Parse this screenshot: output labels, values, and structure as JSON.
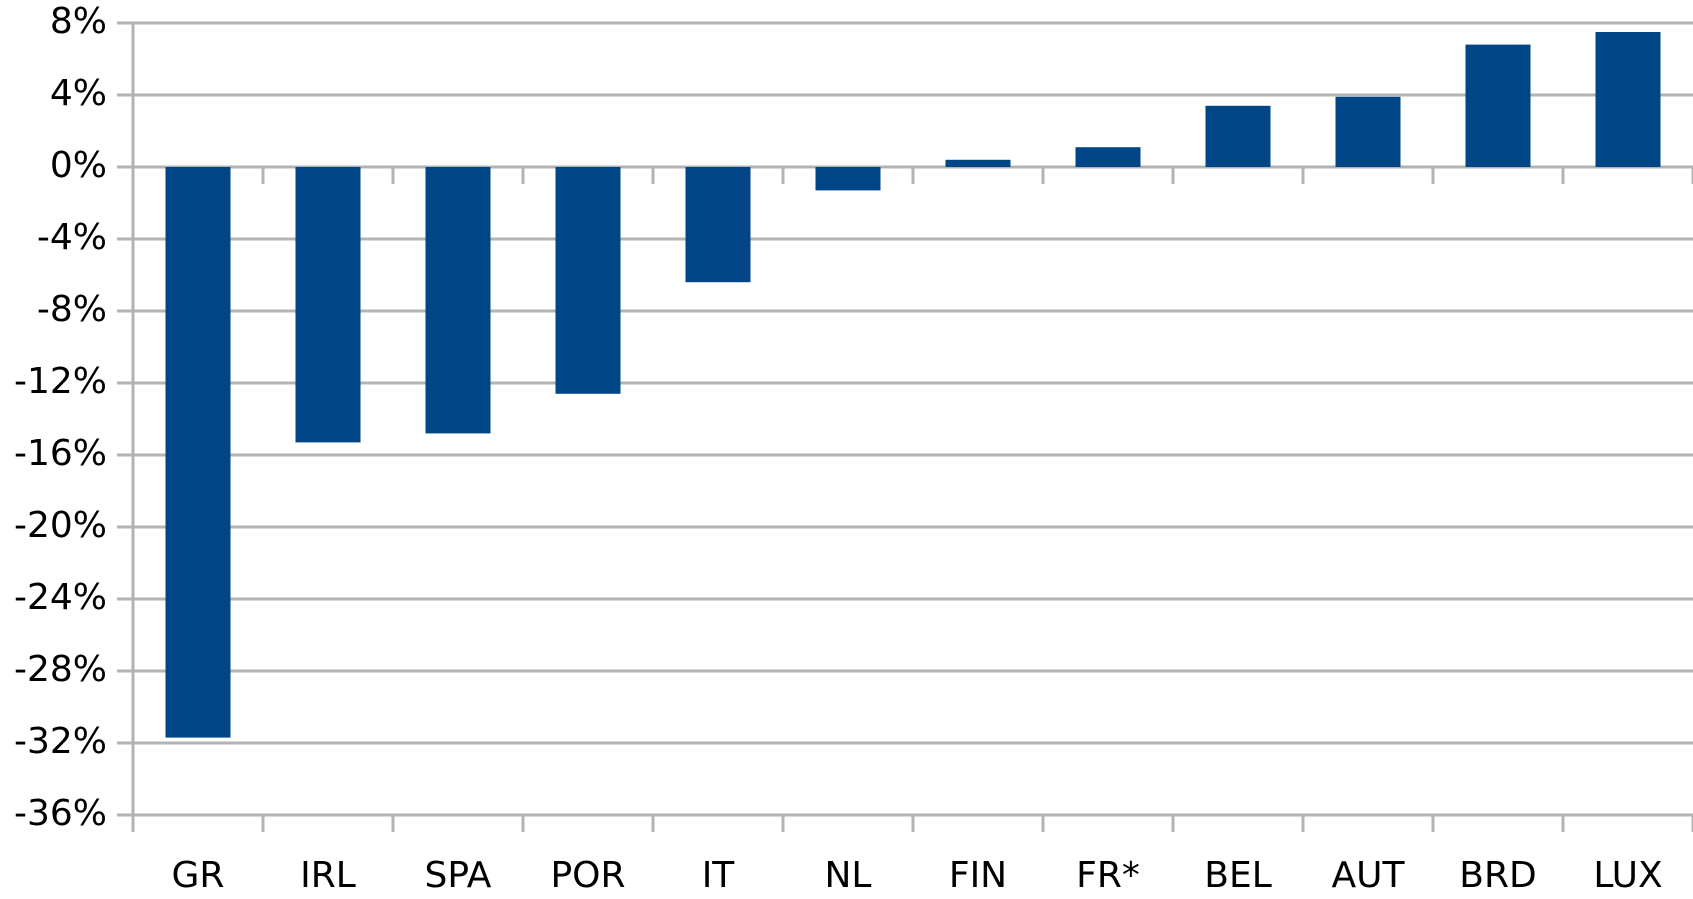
{
  "chart_data": {
    "type": "bar",
    "categories": [
      "GR",
      "IRL",
      "SPA",
      "POR",
      "IT",
      "NL",
      "FIN",
      "FR*",
      "BEL",
      "AUT",
      "BRD",
      "LUX"
    ],
    "values": [
      -31.7,
      -15.3,
      -14.8,
      -12.6,
      -6.4,
      -1.3,
      0.4,
      1.1,
      3.4,
      3.9,
      6.8,
      7.5
    ],
    "color": "#004586",
    "ylim": [
      -36,
      8
    ],
    "yticks": [
      {
        "value": -36,
        "label": "-36%"
      },
      {
        "value": -32,
        "label": "-32%"
      },
      {
        "value": -28,
        "label": "-28%"
      },
      {
        "value": -24,
        "label": "-24%"
      },
      {
        "value": -20,
        "label": "-20%"
      },
      {
        "value": -16,
        "label": "-16%"
      },
      {
        "value": -12,
        "label": "-12%"
      },
      {
        "value": -8,
        "label": "-8%"
      },
      {
        "value": -4,
        "label": "-4%"
      },
      {
        "value": 0,
        "label": "0%"
      },
      {
        "value": 4,
        "label": "4%"
      },
      {
        "value": 8,
        "label": "8%"
      }
    ],
    "grid": true
  }
}
